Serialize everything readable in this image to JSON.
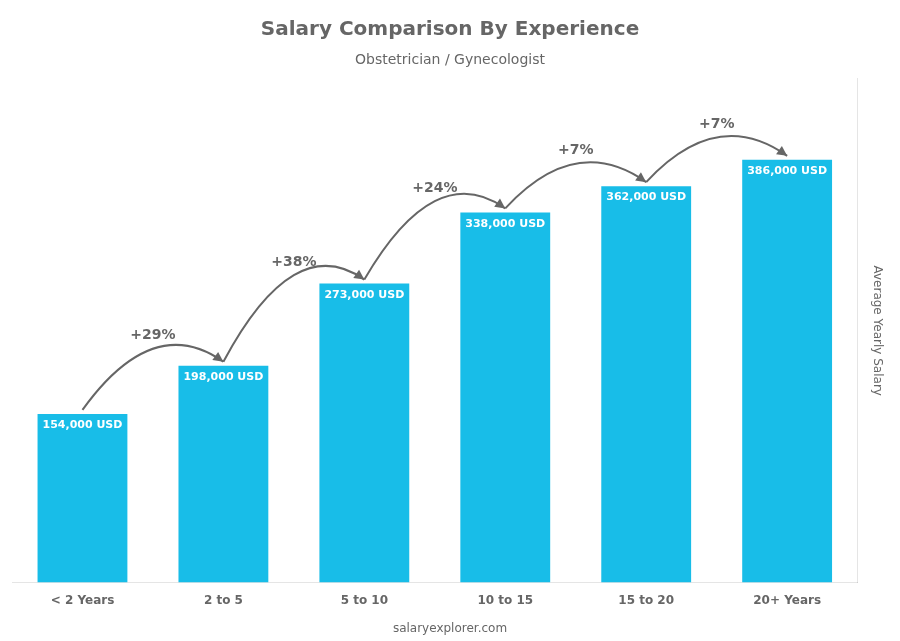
{
  "chart_data": {
    "type": "bar",
    "title": "Salary Comparison By Experience",
    "subtitle": "Obstetrician / Gynecologist",
    "ylabel": "Average Yearly Salary",
    "categories": [
      "< 2 Years",
      "2 to 5",
      "5 to 10",
      "10 to 15",
      "15 to 20",
      "20+ Years"
    ],
    "values": [
      154000,
      198000,
      273000,
      338000,
      362000,
      386000
    ],
    "value_labels": [
      "154,000 USD",
      "198,000 USD",
      "273,000 USD",
      "338,000 USD",
      "362,000 USD",
      "386,000 USD"
    ],
    "data_labels": true,
    "annotations": [
      "+29%",
      "+38%",
      "+24%",
      "+7%",
      "+7%"
    ],
    "watermark": "salaryexplorer.com",
    "color": "#18BDE8",
    "ylim": [
      0,
      460000
    ],
    "tick_labels": "x",
    "grid": false
  }
}
